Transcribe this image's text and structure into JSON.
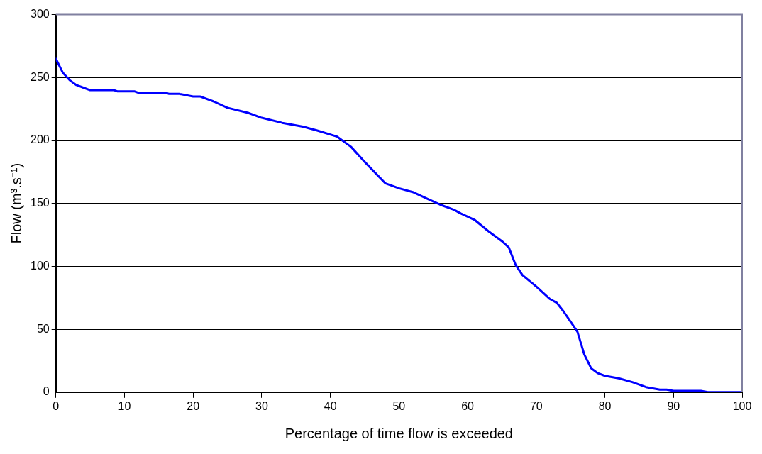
{
  "chart_data": {
    "type": "line",
    "xlabel": "Percentage of time flow is exceeded",
    "ylabel": "Flow (m³.s⁻¹)",
    "xlim": [
      0,
      100
    ],
    "xticks": [
      0,
      10,
      20,
      30,
      40,
      50,
      60,
      70,
      80,
      90,
      100
    ],
    "ylim": [
      0,
      300
    ],
    "yticks": [
      0,
      50,
      100,
      150,
      200,
      250,
      300
    ],
    "grid": "y",
    "legend": false,
    "marker": "none",
    "line_style": "solid",
    "series": [
      {
        "color": "#0000ff",
        "x": [
          0,
          1,
          2,
          3,
          4,
          5,
          8.5,
          9,
          11.5,
          12,
          16,
          16.5,
          18,
          20,
          21,
          23,
          25,
          28,
          30,
          33,
          36,
          38,
          41,
          43,
          45,
          48,
          50,
          52,
          54,
          56,
          58,
          59,
          61,
          63,
          65,
          66,
          67,
          68,
          70,
          72,
          73,
          74,
          75,
          76,
          77,
          78,
          79,
          80,
          82,
          84,
          86,
          88,
          89,
          90,
          94,
          95,
          100
        ],
        "values": [
          265,
          254,
          248,
          244,
          242,
          240,
          240,
          239,
          239,
          238,
          238,
          237,
          237,
          235,
          235,
          231,
          226,
          222,
          218,
          214,
          211,
          208,
          203,
          195,
          183,
          166,
          162,
          159,
          154,
          149,
          145,
          142,
          137,
          128,
          120,
          115,
          101,
          93,
          84,
          74,
          71,
          64,
          56,
          48,
          30,
          19,
          15,
          13,
          11,
          8,
          4,
          2,
          2,
          1,
          1,
          0,
          0
        ]
      }
    ]
  }
}
